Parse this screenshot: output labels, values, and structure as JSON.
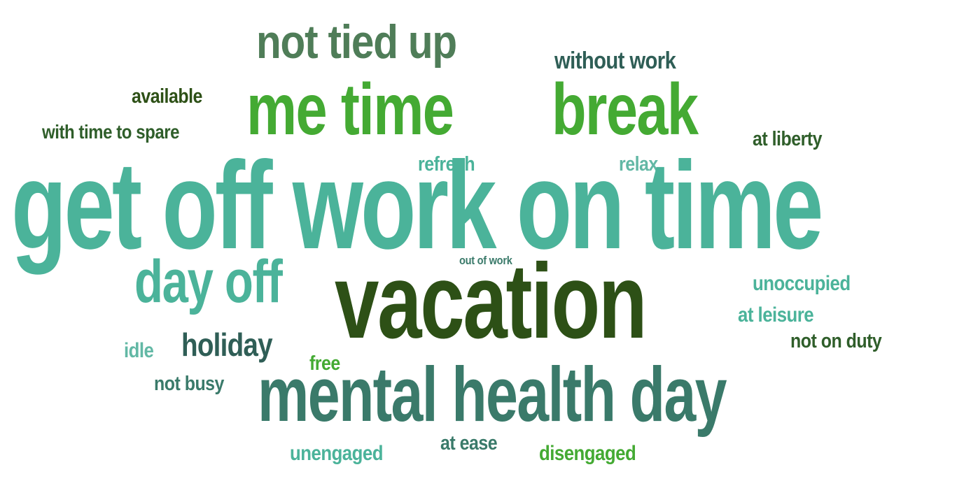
{
  "words": {
    "not_tied_up": "not tied up",
    "without_work": "without work",
    "available": "available",
    "me_time": "me time",
    "break": "break",
    "with_time_to_spare": "with time to spare",
    "at_liberty": "at liberty",
    "refresh": "refresh",
    "relax": "relax",
    "get_off_work_on_time": "get off work on time",
    "out_of_work": "out of work",
    "day_off": "day off",
    "unoccupied": "unoccupied",
    "vacation": "vacation",
    "at_leisure": "at leisure",
    "holiday": "holiday",
    "not_on_duty": "not on duty",
    "idle": "idle",
    "free": "free",
    "mental_health_day": "mental health day",
    "not_busy": "not busy",
    "at_ease": "at ease",
    "unengaged": "unengaged",
    "disengaged": "disengaged"
  },
  "colors": {
    "dark_green": "#2d5016",
    "forest_green": "#2f5e2a",
    "teal": "#3a7a6a",
    "slate_teal": "#2f5e56",
    "sage": "#4f7d58",
    "bright_green": "#44aa33",
    "mint": "#4bb39a",
    "pale_teal": "#62b8a5",
    "background": "#ffffff"
  }
}
